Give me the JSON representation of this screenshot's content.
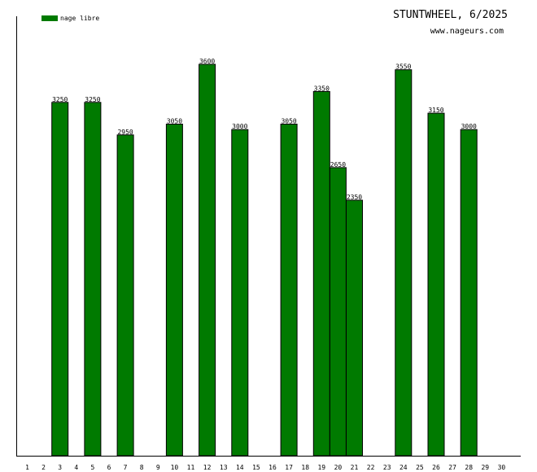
{
  "chart_data": {
    "type": "bar",
    "title": "STUNTWHEEL, 6/2025",
    "subtitle": "www.nageurs.com",
    "categories": [
      "1",
      "2",
      "3",
      "4",
      "5",
      "6",
      "7",
      "8",
      "9",
      "10",
      "11",
      "12",
      "13",
      "14",
      "15",
      "16",
      "17",
      "18",
      "19",
      "20",
      "21",
      "22",
      "23",
      "24",
      "25",
      "26",
      "27",
      "28",
      "29",
      "30"
    ],
    "series": [
      {
        "name": "nage libre",
        "color": "#007a00",
        "points": [
          {
            "x": "3",
            "value": 3250
          },
          {
            "x": "5",
            "value": 3250
          },
          {
            "x": "7",
            "value": 2950
          },
          {
            "x": "10",
            "value": 3050
          },
          {
            "x": "12",
            "value": 3600
          },
          {
            "x": "14",
            "value": 3000
          },
          {
            "x": "17",
            "value": 3050
          },
          {
            "x": "19",
            "value": 3350
          },
          {
            "x": "20",
            "value": 2650
          },
          {
            "x": "21",
            "value": 2350
          },
          {
            "x": "24",
            "value": 3550
          },
          {
            "x": "26",
            "value": 3150
          },
          {
            "x": "28",
            "value": 3000
          }
        ]
      }
    ],
    "ylim": [
      0,
      4000
    ],
    "xlabel": "",
    "ylabel": "",
    "grid": false,
    "legend_position": "top-left"
  }
}
